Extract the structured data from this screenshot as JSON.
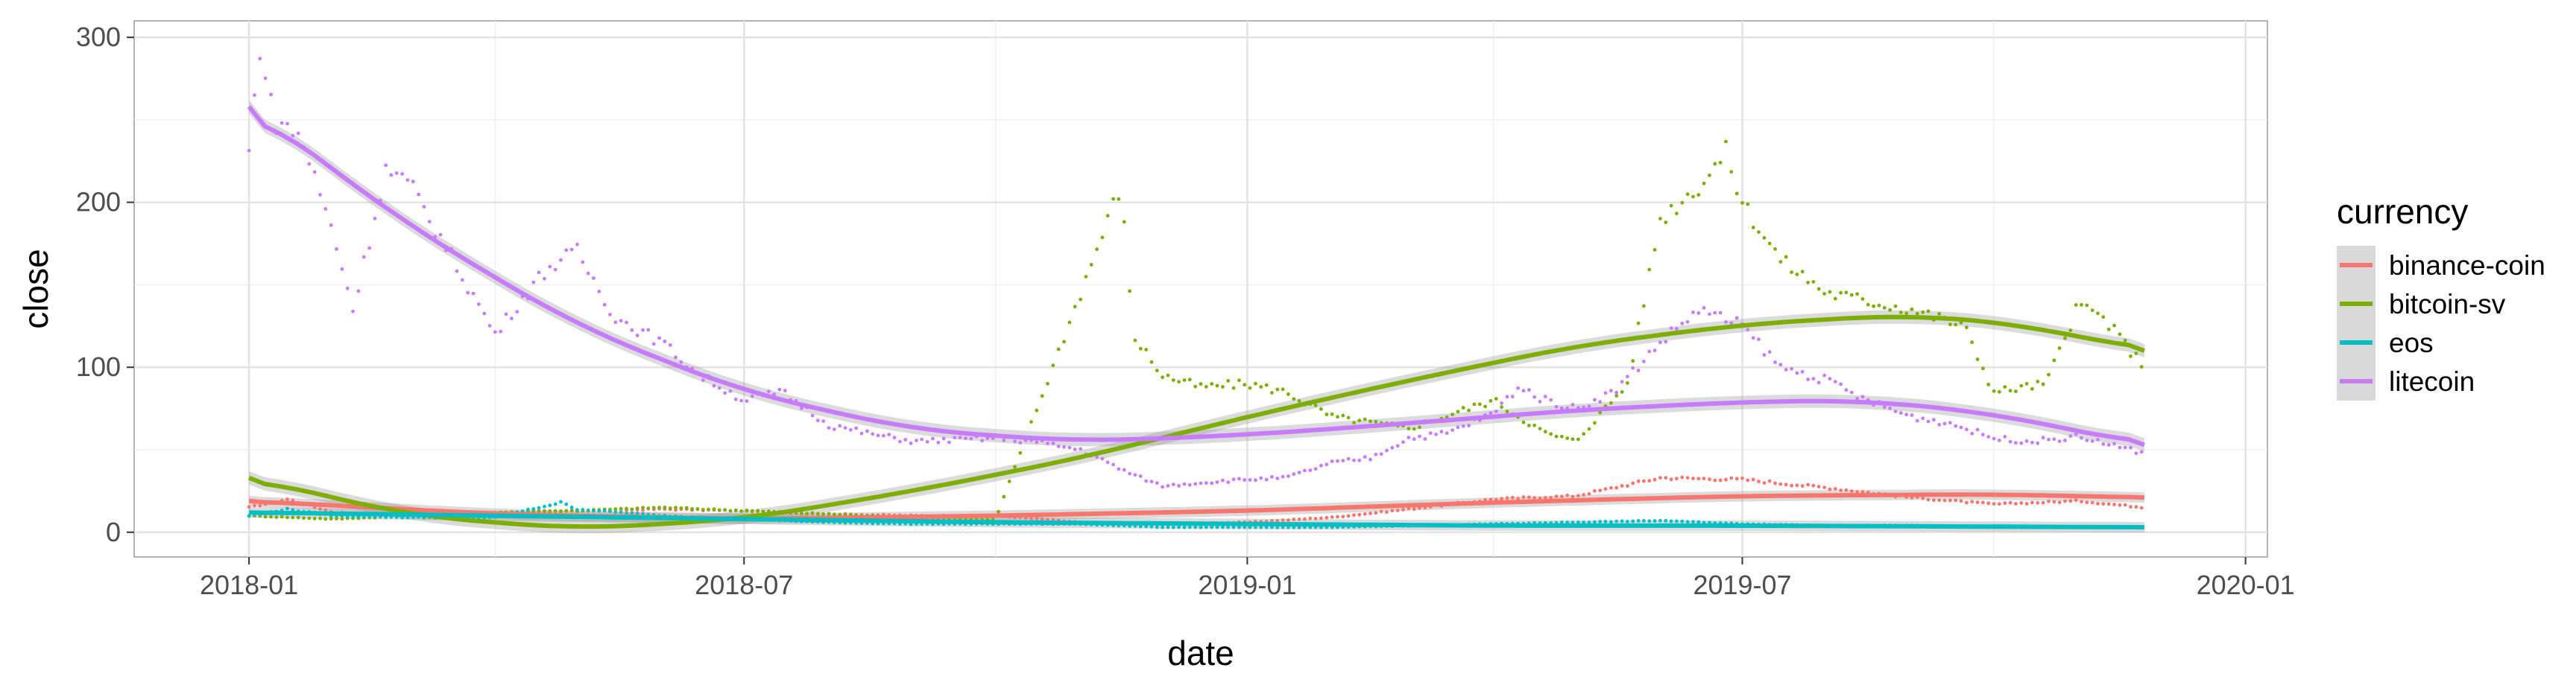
{
  "chart_data": {
    "type": "scatter",
    "xlabel": "date",
    "ylabel": "close",
    "x_ticks": [
      "2018-01",
      "2018-07",
      "2019-01",
      "2019-07",
      "2020-01"
    ],
    "y_ticks": [
      0,
      100,
      200,
      300
    ],
    "xlim": [
      "2017-11-20",
      "2020-01-09"
    ],
    "ylim": [
      -15,
      310
    ],
    "grid": true,
    "legend": {
      "title": "currency",
      "position": "right"
    },
    "series": [
      {
        "name": "binance-coin",
        "color": "#F8766D",
        "points": [
          [
            "2018-01-01",
            15
          ],
          [
            "2018-01-15",
            20
          ],
          [
            "2018-02-01",
            12
          ],
          [
            "2018-03-01",
            10
          ],
          [
            "2018-04-01",
            12
          ],
          [
            "2018-05-01",
            13
          ],
          [
            "2018-06-01",
            14
          ],
          [
            "2018-07-01",
            13
          ],
          [
            "2018-08-01",
            11
          ],
          [
            "2018-09-01",
            10
          ],
          [
            "2018-10-01",
            10
          ],
          [
            "2018-11-01",
            6
          ],
          [
            "2018-12-01",
            5
          ],
          [
            "2019-01-01",
            6
          ],
          [
            "2019-02-01",
            9
          ],
          [
            "2019-03-01",
            14
          ],
          [
            "2019-04-01",
            20
          ],
          [
            "2019-05-01",
            22
          ],
          [
            "2019-06-01",
            33
          ],
          [
            "2019-07-01",
            32
          ],
          [
            "2019-08-01",
            27
          ],
          [
            "2019-09-01",
            21
          ],
          [
            "2019-10-01",
            17
          ],
          [
            "2019-11-01",
            19
          ],
          [
            "2019-11-25",
            15
          ]
        ],
        "smooth": [
          [
            "2018-01-01",
            19
          ],
          [
            "2018-04-01",
            11
          ],
          [
            "2018-07-01",
            8
          ],
          [
            "2018-10-01",
            10
          ],
          [
            "2019-01-01",
            13
          ],
          [
            "2019-04-01",
            18
          ],
          [
            "2019-07-01",
            22
          ],
          [
            "2019-10-01",
            23
          ],
          [
            "2019-11-25",
            21
          ]
        ]
      },
      {
        "name": "bitcoin-sv",
        "color": "#7CAE00",
        "points": [
          [
            "2018-01-01",
            10
          ],
          [
            "2018-02-01",
            8
          ],
          [
            "2018-03-01",
            10
          ],
          [
            "2018-04-01",
            12
          ],
          [
            "2018-05-01",
            13
          ],
          [
            "2018-06-01",
            15
          ],
          [
            "2018-07-01",
            13
          ],
          [
            "2018-08-01",
            11
          ],
          [
            "2018-09-01",
            9
          ],
          [
            "2018-10-01",
            8
          ],
          [
            "2018-11-15",
            207
          ],
          [
            "2018-11-18",
            173
          ],
          [
            "2018-11-20",
            120
          ],
          [
            "2018-12-01",
            95
          ],
          [
            "2018-12-15",
            88
          ],
          [
            "2019-01-01",
            90
          ],
          [
            "2019-01-15",
            85
          ],
          [
            "2019-02-01",
            70
          ],
          [
            "2019-03-01",
            63
          ],
          [
            "2019-04-01",
            80
          ],
          [
            "2019-04-20",
            60
          ],
          [
            "2019-05-01",
            55
          ],
          [
            "2019-05-20",
            90
          ],
          [
            "2019-06-01",
            190
          ],
          [
            "2019-06-15",
            210
          ],
          [
            "2019-06-25",
            230
          ],
          [
            "2019-07-01",
            200
          ],
          [
            "2019-07-15",
            165
          ],
          [
            "2019-08-01",
            145
          ],
          [
            "2019-09-01",
            135
          ],
          [
            "2019-09-20",
            125
          ],
          [
            "2019-10-01",
            85
          ],
          [
            "2019-10-20",
            90
          ],
          [
            "2019-11-01",
            138
          ],
          [
            "2019-11-10",
            130
          ],
          [
            "2019-11-25",
            100
          ]
        ],
        "smooth": [
          [
            "2018-01-01",
            33
          ],
          [
            "2018-03-01",
            10
          ],
          [
            "2018-05-01",
            2
          ],
          [
            "2018-07-01",
            8
          ],
          [
            "2018-09-01",
            25
          ],
          [
            "2018-11-01",
            45
          ],
          [
            "2019-01-01",
            70
          ],
          [
            "2019-03-01",
            92
          ],
          [
            "2019-05-01",
            113
          ],
          [
            "2019-07-01",
            126
          ],
          [
            "2019-09-01",
            132
          ],
          [
            "2019-10-15",
            125
          ],
          [
            "2019-11-25",
            110
          ]
        ]
      },
      {
        "name": "eos",
        "color": "#00BFC4",
        "points": [
          [
            "2018-01-01",
            10
          ],
          [
            "2018-01-15",
            14
          ],
          [
            "2018-02-01",
            10
          ],
          [
            "2018-03-01",
            9
          ],
          [
            "2018-04-01",
            9
          ],
          [
            "2018-04-25",
            18
          ],
          [
            "2018-05-01",
            14
          ],
          [
            "2018-06-01",
            10
          ],
          [
            "2018-07-01",
            8
          ],
          [
            "2018-08-01",
            6
          ],
          [
            "2018-09-01",
            5
          ],
          [
            "2018-10-01",
            5
          ],
          [
            "2018-11-01",
            5
          ],
          [
            "2018-12-01",
            3
          ],
          [
            "2019-01-01",
            3
          ],
          [
            "2019-02-01",
            3
          ],
          [
            "2019-03-01",
            4
          ],
          [
            "2019-04-01",
            5
          ],
          [
            "2019-05-01",
            6
          ],
          [
            "2019-06-01",
            7
          ],
          [
            "2019-07-01",
            5
          ],
          [
            "2019-08-01",
            4
          ],
          [
            "2019-09-01",
            4
          ],
          [
            "2019-10-01",
            3
          ],
          [
            "2019-11-25",
            3
          ]
        ],
        "smooth": [
          [
            "2018-01-01",
            12
          ],
          [
            "2018-04-01",
            10
          ],
          [
            "2018-07-01",
            8
          ],
          [
            "2018-10-01",
            6
          ],
          [
            "2019-01-01",
            5
          ],
          [
            "2019-04-01",
            4
          ],
          [
            "2019-07-01",
            4
          ],
          [
            "2019-11-25",
            3
          ]
        ]
      },
      {
        "name": "litecoin",
        "color": "#C77CFF",
        "points": [
          [
            "2018-01-01",
            230
          ],
          [
            "2018-01-05",
            295
          ],
          [
            "2018-01-10",
            250
          ],
          [
            "2018-01-20",
            240
          ],
          [
            "2018-02-01",
            180
          ],
          [
            "2018-02-08",
            135
          ],
          [
            "2018-02-20",
            220
          ],
          [
            "2018-03-01",
            210
          ],
          [
            "2018-03-15",
            170
          ],
          [
            "2018-04-01",
            120
          ],
          [
            "2018-04-10",
            140
          ],
          [
            "2018-04-20",
            160
          ],
          [
            "2018-05-01",
            170
          ],
          [
            "2018-05-15",
            130
          ],
          [
            "2018-06-01",
            115
          ],
          [
            "2018-06-15",
            95
          ],
          [
            "2018-07-01",
            80
          ],
          [
            "2018-07-15",
            85
          ],
          [
            "2018-08-01",
            65
          ],
          [
            "2018-08-15",
            60
          ],
          [
            "2018-09-01",
            55
          ],
          [
            "2018-10-01",
            57
          ],
          [
            "2018-10-15",
            55
          ],
          [
            "2018-11-01",
            50
          ],
          [
            "2018-11-20",
            35
          ],
          [
            "2018-12-01",
            28
          ],
          [
            "2018-12-15",
            30
          ],
          [
            "2019-01-01",
            32
          ],
          [
            "2019-01-15",
            33
          ],
          [
            "2019-02-01",
            42
          ],
          [
            "2019-02-15",
            45
          ],
          [
            "2019-03-01",
            57
          ],
          [
            "2019-03-15",
            60
          ],
          [
            "2019-04-01",
            72
          ],
          [
            "2019-04-10",
            88
          ],
          [
            "2019-04-20",
            80
          ],
          [
            "2019-05-01",
            75
          ],
          [
            "2019-05-15",
            85
          ],
          [
            "2019-06-01",
            115
          ],
          [
            "2019-06-15",
            135
          ],
          [
            "2019-07-01",
            125
          ],
          [
            "2019-07-15",
            100
          ],
          [
            "2019-08-01",
            92
          ],
          [
            "2019-08-15",
            80
          ],
          [
            "2019-09-01",
            70
          ],
          [
            "2019-09-15",
            66
          ],
          [
            "2019-10-01",
            57
          ],
          [
            "2019-10-15",
            55
          ],
          [
            "2019-11-01",
            58
          ],
          [
            "2019-11-15",
            52
          ],
          [
            "2019-11-25",
            48
          ]
        ],
        "smooth": [
          [
            "2018-01-01",
            258
          ],
          [
            "2018-03-01",
            185
          ],
          [
            "2018-05-01",
            125
          ],
          [
            "2018-07-01",
            85
          ],
          [
            "2018-09-01",
            62
          ],
          [
            "2018-11-01",
            55
          ],
          [
            "2019-01-01",
            59
          ],
          [
            "2019-03-01",
            66
          ],
          [
            "2019-05-01",
            74
          ],
          [
            "2019-07-01",
            79
          ],
          [
            "2019-08-15",
            80
          ],
          [
            "2019-10-01",
            72
          ],
          [
            "2019-11-25",
            53
          ]
        ]
      }
    ]
  }
}
